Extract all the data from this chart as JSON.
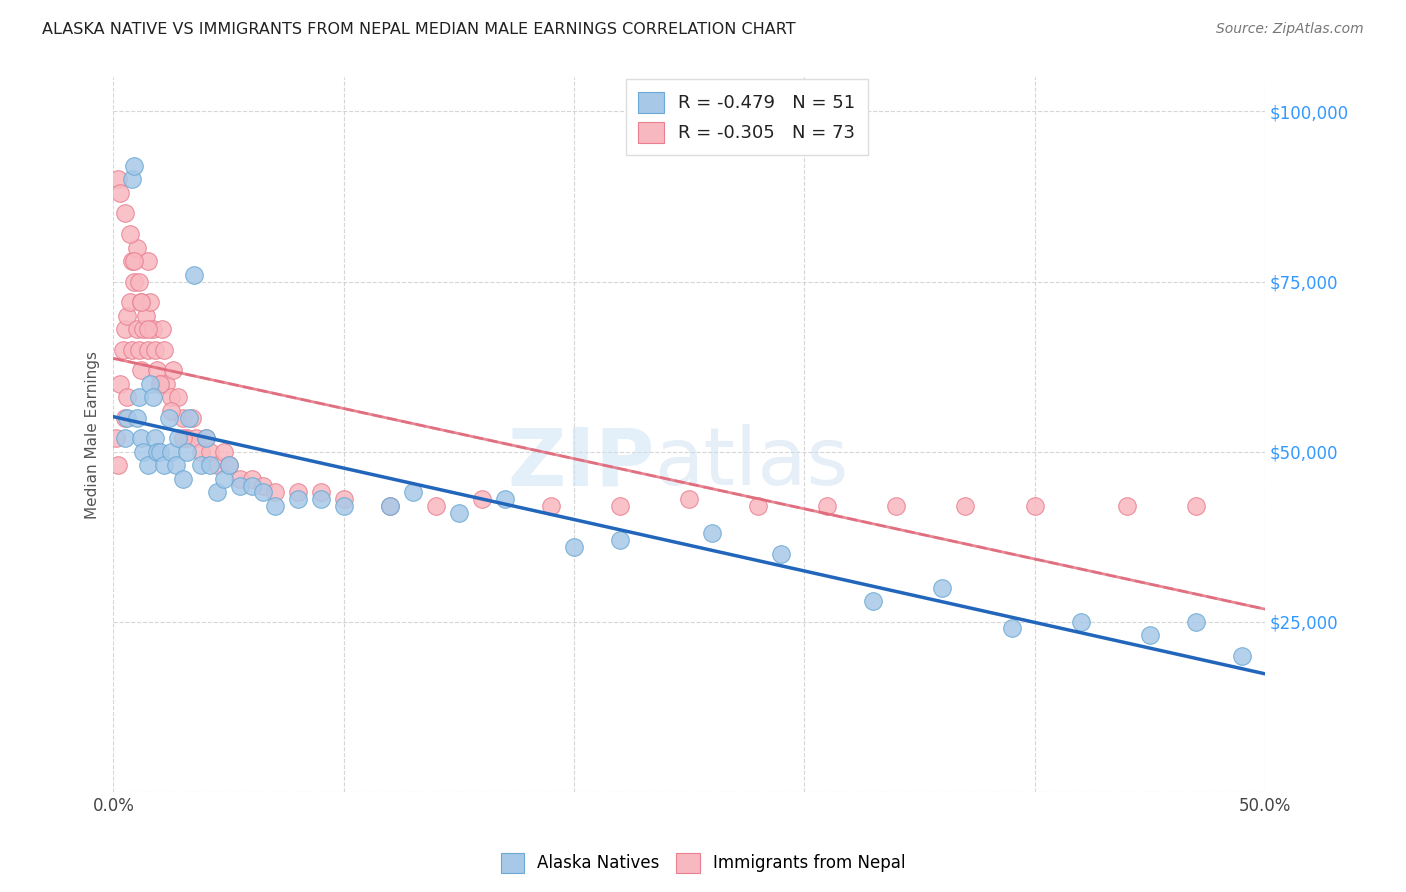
{
  "title": "ALASKA NATIVE VS IMMIGRANTS FROM NEPAL MEDIAN MALE EARNINGS CORRELATION CHART",
  "source": "Source: ZipAtlas.com",
  "ylabel": "Median Male Earnings",
  "xlim": [
    0.0,
    0.5
  ],
  "ylim": [
    0,
    105000
  ],
  "alaska_R": -0.479,
  "alaska_N": 51,
  "nepal_R": -0.305,
  "nepal_N": 73,
  "alaska_color": "#a8c8e8",
  "alaska_edge_color": "#6aaad4",
  "alaska_line_color": "#2266bb",
  "nepal_color": "#f8b8c0",
  "nepal_edge_color": "#e88090",
  "nepal_line_color": "#dd5566",
  "nepal_trendline_color": "#e8a0b0",
  "background_color": "#ffffff",
  "grid_color": "#cccccc",
  "title_color": "#222222",
  "right_tick_color": "#3399ff",
  "legend_r_color": "#dd2222",
  "legend_n_color": "#2255cc",
  "alaska_x": [
    0.005,
    0.006,
    0.008,
    0.009,
    0.01,
    0.011,
    0.012,
    0.013,
    0.015,
    0.016,
    0.017,
    0.018,
    0.019,
    0.02,
    0.022,
    0.024,
    0.025,
    0.027,
    0.028,
    0.03,
    0.032,
    0.033,
    0.035,
    0.038,
    0.04,
    0.042,
    0.045,
    0.048,
    0.05,
    0.055,
    0.06,
    0.065,
    0.07,
    0.08,
    0.09,
    0.1,
    0.12,
    0.13,
    0.15,
    0.17,
    0.2,
    0.22,
    0.26,
    0.29,
    0.33,
    0.36,
    0.39,
    0.42,
    0.45,
    0.47,
    0.49
  ],
  "alaska_y": [
    52000,
    55000,
    90000,
    92000,
    55000,
    58000,
    52000,
    50000,
    48000,
    60000,
    58000,
    52000,
    50000,
    50000,
    48000,
    55000,
    50000,
    48000,
    52000,
    46000,
    50000,
    55000,
    76000,
    48000,
    52000,
    48000,
    44000,
    46000,
    48000,
    45000,
    45000,
    44000,
    42000,
    43000,
    43000,
    42000,
    42000,
    44000,
    41000,
    43000,
    36000,
    37000,
    38000,
    35000,
    28000,
    30000,
    24000,
    25000,
    23000,
    25000,
    20000
  ],
  "nepal_x": [
    0.001,
    0.002,
    0.003,
    0.004,
    0.005,
    0.005,
    0.006,
    0.006,
    0.007,
    0.008,
    0.008,
    0.009,
    0.01,
    0.01,
    0.011,
    0.011,
    0.012,
    0.012,
    0.013,
    0.014,
    0.015,
    0.015,
    0.016,
    0.017,
    0.018,
    0.019,
    0.02,
    0.021,
    0.022,
    0.023,
    0.025,
    0.026,
    0.028,
    0.03,
    0.032,
    0.034,
    0.036,
    0.038,
    0.04,
    0.042,
    0.045,
    0.048,
    0.05,
    0.055,
    0.06,
    0.065,
    0.07,
    0.08,
    0.09,
    0.1,
    0.12,
    0.14,
    0.16,
    0.19,
    0.22,
    0.25,
    0.28,
    0.31,
    0.34,
    0.37,
    0.4,
    0.44,
    0.47,
    0.002,
    0.003,
    0.005,
    0.007,
    0.009,
    0.012,
    0.015,
    0.02,
    0.025,
    0.03
  ],
  "nepal_y": [
    52000,
    48000,
    60000,
    65000,
    68000,
    55000,
    70000,
    58000,
    72000,
    78000,
    65000,
    75000,
    80000,
    68000,
    75000,
    65000,
    72000,
    62000,
    68000,
    70000,
    78000,
    65000,
    72000,
    68000,
    65000,
    62000,
    60000,
    68000,
    65000,
    60000,
    58000,
    62000,
    58000,
    55000,
    52000,
    55000,
    52000,
    50000,
    52000,
    50000,
    48000,
    50000,
    48000,
    46000,
    46000,
    45000,
    44000,
    44000,
    44000,
    43000,
    42000,
    42000,
    43000,
    42000,
    42000,
    43000,
    42000,
    42000,
    42000,
    42000,
    42000,
    42000,
    42000,
    90000,
    88000,
    85000,
    82000,
    78000,
    72000,
    68000,
    60000,
    56000,
    52000
  ]
}
